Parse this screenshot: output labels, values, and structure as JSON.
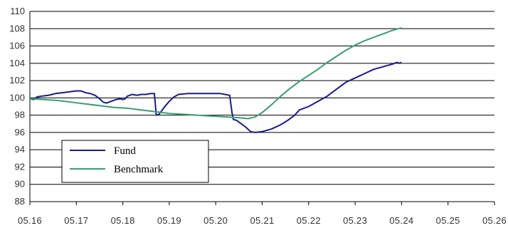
{
  "chart_data": {
    "type": "line",
    "xlabel": "",
    "ylabel": "",
    "ylim": [
      88,
      110
    ],
    "yticks": [
      "88",
      "90",
      "92",
      "94",
      "96",
      "98",
      "100",
      "102",
      "104",
      "106",
      "108",
      "110"
    ],
    "xticks": [
      "05.16",
      "05.17",
      "05.18",
      "05.19",
      "05.20",
      "05.21",
      "05.22",
      "05.23",
      "05.24",
      "05.25",
      "05.26"
    ],
    "grid": "horizontal",
    "legend_position": "lower-left",
    "series": [
      {
        "name": "Fund",
        "color": "#1a1a8c",
        "points": [
          [
            0.0,
            99.9
          ],
          [
            0.08,
            99.8
          ],
          [
            0.15,
            100.1
          ],
          [
            0.25,
            100.2
          ],
          [
            0.4,
            100.3
          ],
          [
            0.55,
            100.5
          ],
          [
            0.7,
            100.6
          ],
          [
            0.85,
            100.7
          ],
          [
            1.0,
            100.8
          ],
          [
            1.1,
            100.8
          ],
          [
            1.2,
            100.6
          ],
          [
            1.3,
            100.5
          ],
          [
            1.4,
            100.3
          ],
          [
            1.5,
            99.9
          ],
          [
            1.58,
            99.5
          ],
          [
            1.65,
            99.4
          ],
          [
            1.75,
            99.6
          ],
          [
            1.85,
            99.8
          ],
          [
            1.95,
            99.9
          ],
          [
            2.0,
            99.8
          ],
          [
            2.05,
            99.9
          ],
          [
            2.1,
            100.2
          ],
          [
            2.2,
            100.4
          ],
          [
            2.3,
            100.3
          ],
          [
            2.4,
            100.4
          ],
          [
            2.5,
            100.4
          ],
          [
            2.6,
            100.5
          ],
          [
            2.68,
            100.5
          ],
          [
            2.72,
            98.0
          ],
          [
            2.78,
            98.1
          ],
          [
            2.85,
            98.6
          ],
          [
            2.92,
            99.1
          ],
          [
            3.0,
            99.6
          ],
          [
            3.1,
            100.1
          ],
          [
            3.2,
            100.4
          ],
          [
            3.4,
            100.5
          ],
          [
            3.8,
            100.5
          ],
          [
            4.1,
            100.5
          ],
          [
            4.3,
            100.3
          ],
          [
            4.35,
            98.3
          ],
          [
            4.38,
            97.5
          ],
          [
            4.45,
            97.4
          ],
          [
            4.55,
            97.0
          ],
          [
            4.65,
            96.6
          ],
          [
            4.75,
            96.1
          ],
          [
            4.85,
            96.0
          ],
          [
            5.0,
            96.1
          ],
          [
            5.2,
            96.4
          ],
          [
            5.4,
            96.9
          ],
          [
            5.55,
            97.4
          ],
          [
            5.7,
            98.0
          ],
          [
            5.8,
            98.6
          ],
          [
            6.0,
            99.0
          ],
          [
            6.2,
            99.6
          ],
          [
            6.4,
            100.2
          ],
          [
            6.6,
            101.0
          ],
          [
            6.8,
            101.8
          ],
          [
            7.0,
            102.3
          ],
          [
            7.2,
            102.8
          ],
          [
            7.4,
            103.3
          ],
          [
            7.6,
            103.6
          ],
          [
            7.8,
            103.9
          ],
          [
            7.9,
            104.1
          ],
          [
            7.95,
            104.0
          ],
          [
            8.0,
            104.1
          ]
        ]
      },
      {
        "name": "Benchmark",
        "color": "#3a9e6e",
        "points": [
          [
            0.0,
            99.9
          ],
          [
            0.3,
            99.8
          ],
          [
            0.6,
            99.7
          ],
          [
            0.9,
            99.5
          ],
          [
            1.2,
            99.3
          ],
          [
            1.5,
            99.1
          ],
          [
            1.8,
            98.9
          ],
          [
            2.1,
            98.8
          ],
          [
            2.4,
            98.6
          ],
          [
            2.7,
            98.4
          ],
          [
            3.0,
            98.2
          ],
          [
            3.3,
            98.1
          ],
          [
            3.6,
            98.0
          ],
          [
            3.9,
            97.9
          ],
          [
            4.2,
            97.8
          ],
          [
            4.5,
            97.7
          ],
          [
            4.7,
            97.6
          ],
          [
            4.85,
            97.8
          ],
          [
            5.0,
            98.3
          ],
          [
            5.2,
            99.2
          ],
          [
            5.4,
            100.2
          ],
          [
            5.6,
            101.1
          ],
          [
            5.8,
            101.9
          ],
          [
            6.0,
            102.6
          ],
          [
            6.2,
            103.3
          ],
          [
            6.4,
            104.1
          ],
          [
            6.6,
            104.8
          ],
          [
            6.8,
            105.5
          ],
          [
            7.0,
            106.1
          ],
          [
            7.2,
            106.6
          ],
          [
            7.4,
            107.0
          ],
          [
            7.6,
            107.4
          ],
          [
            7.8,
            107.8
          ],
          [
            8.0,
            108.1
          ]
        ]
      }
    ]
  }
}
